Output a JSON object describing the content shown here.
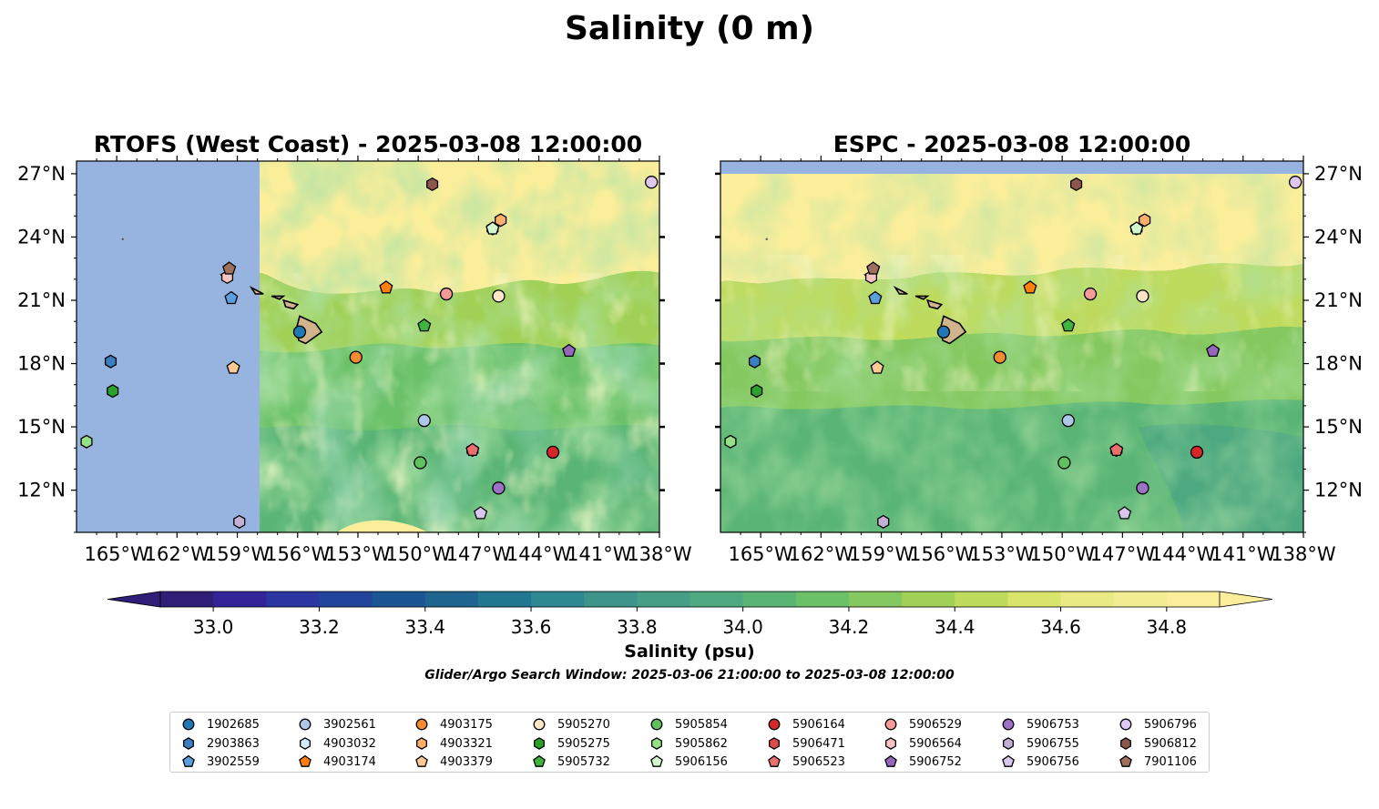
{
  "figure_title": "Salinity (0 m)",
  "chart_data": [
    {
      "type": "heatmap",
      "title": "RTOFS (West Coast) - 2025-03-08 12:00:00",
      "x_tick_labels": [
        "165°W",
        "162°W",
        "159°W",
        "156°W",
        "153°W",
        "150°W",
        "147°W",
        "144°W",
        "141°W",
        "138°W"
      ],
      "y_tick_labels": [
        "27°N",
        "24°N",
        "21°N",
        "18°N",
        "15°N",
        "12°N"
      ],
      "xlim": [
        -167,
        -138
      ],
      "ylim": [
        10,
        27.6
      ],
      "no_data_region": "west of 157.9°W",
      "background_value": 34.9
    },
    {
      "type": "heatmap",
      "title": "ESPC - 2025-03-08 12:00:00",
      "x_tick_labels": [
        "165°W",
        "162°W",
        "159°W",
        "156°W",
        "153°W",
        "150°W",
        "147°W",
        "144°W",
        "141°W",
        "138°W"
      ],
      "y_tick_labels": [
        "27°N",
        "24°N",
        "21°N",
        "18°N",
        "15°N",
        "12°N"
      ],
      "xlim": [
        -167,
        -138
      ],
      "ylim": [
        10,
        27.6
      ],
      "no_data_region": "north of 27.1°N",
      "background_value": 34.3
    }
  ],
  "floats": [
    {
      "id": "1902685",
      "lon": -155.9,
      "lat": 19.5,
      "marker": "circle",
      "color": "#1f77b4"
    },
    {
      "id": "2903863",
      "lon": -165.3,
      "lat": 18.1,
      "marker": "hexagon",
      "color": "#3a7fc0"
    },
    {
      "id": "3902559",
      "lon": -159.3,
      "lat": 21.1,
      "marker": "pentagon",
      "color": "#5a9fe0"
    },
    {
      "id": "3902561",
      "lon": -149.7,
      "lat": 15.3,
      "marker": "circle",
      "color": "#aec7e8"
    },
    {
      "id": "4903032",
      "lon": -146.3,
      "lat": 24.4,
      "marker": "hexagon",
      "color": "#d7eaf7"
    },
    {
      "id": "4903174",
      "lon": -151.6,
      "lat": 21.6,
      "marker": "pentagon",
      "color": "#ff7f0e"
    },
    {
      "id": "4903175",
      "lon": -153.1,
      "lat": 18.3,
      "marker": "circle",
      "color": "#f58c32"
    },
    {
      "id": "4903321",
      "lon": -145.9,
      "lat": 24.8,
      "marker": "hexagon",
      "color": "#ffae6b"
    },
    {
      "id": "4903379",
      "lon": -159.2,
      "lat": 17.8,
      "marker": "pentagon",
      "color": "#ffc894"
    },
    {
      "id": "5905270",
      "lon": -146.0,
      "lat": 21.2,
      "marker": "circle",
      "color": "#fde5c8"
    },
    {
      "id": "5905275",
      "lon": -165.2,
      "lat": 16.7,
      "marker": "hexagon",
      "color": "#2ca02c"
    },
    {
      "id": "5905732",
      "lon": -149.7,
      "lat": 19.8,
      "marker": "pentagon",
      "color": "#3fb53f"
    },
    {
      "id": "5905854",
      "lon": -149.9,
      "lat": 13.3,
      "marker": "circle",
      "color": "#5fc25f"
    },
    {
      "id": "5905862",
      "lon": -166.5,
      "lat": 14.3,
      "marker": "hexagon",
      "color": "#98df8a"
    },
    {
      "id": "5906156",
      "lon": -146.3,
      "lat": 24.4,
      "marker": "pentagon",
      "color": "#d5f7d0"
    },
    {
      "id": "5906164",
      "lon": -143.3,
      "lat": 13.8,
      "marker": "circle",
      "color": "#d62728"
    },
    {
      "id": "5906471",
      "lon": -147.3,
      "lat": 13.9,
      "marker": "hexagon",
      "color": "#e04a48"
    },
    {
      "id": "5906523",
      "lon": -147.3,
      "lat": 13.9,
      "marker": "pentagon",
      "color": "#ec6e6c"
    },
    {
      "id": "5906529",
      "lon": -148.6,
      "lat": 21.3,
      "marker": "circle",
      "color": "#f59a99"
    },
    {
      "id": "5906564",
      "lon": -159.5,
      "lat": 22.1,
      "marker": "hexagon",
      "color": "#f7c4c3"
    },
    {
      "id": "5906752",
      "lon": -142.5,
      "lat": 18.6,
      "marker": "pentagon",
      "color": "#9467bd"
    },
    {
      "id": "5906753",
      "lon": -146.0,
      "lat": 12.1,
      "marker": "circle",
      "color": "#9b72c6"
    },
    {
      "id": "5906755",
      "lon": -158.9,
      "lat": 10.5,
      "marker": "hexagon",
      "color": "#c5b0d5"
    },
    {
      "id": "5906756",
      "lon": -146.9,
      "lat": 10.9,
      "marker": "pentagon",
      "color": "#d9c6ee"
    },
    {
      "id": "5906796",
      "lon": -138.4,
      "lat": 26.6,
      "marker": "circle",
      "color": "#e0c8f3"
    },
    {
      "id": "5906812",
      "lon": -149.3,
      "lat": 26.5,
      "marker": "hexagon",
      "color": "#8c564b"
    },
    {
      "id": "7901106",
      "lon": -159.4,
      "lat": 22.5,
      "marker": "pentagon",
      "color": "#a0705f"
    }
  ],
  "colorbar": {
    "label": "Salinity (psu)",
    "min": 32.9,
    "max": 34.9,
    "step": 0.1,
    "tick_labels": [
      "33.0",
      "33.2",
      "33.4",
      "33.6",
      "33.8",
      "34.0",
      "34.2",
      "34.4",
      "34.6",
      "34.8"
    ],
    "extend": "both",
    "colors": [
      "#2e1e77",
      "#33249a",
      "#2b36a0",
      "#22459b",
      "#1a5594",
      "#1e6690",
      "#237891",
      "#2e8891",
      "#3c948b",
      "#469e87",
      "#4fa980",
      "#5ab575",
      "#6ac168",
      "#84c85f",
      "#a0d056",
      "#bedb5e",
      "#d8e46c",
      "#eaea85",
      "#f2ec92",
      "#fbee9b"
    ]
  },
  "search_window": "Glider/Argo Search Window: 2025-03-06 21:00:00 to 2025-03-08 12:00:00"
}
